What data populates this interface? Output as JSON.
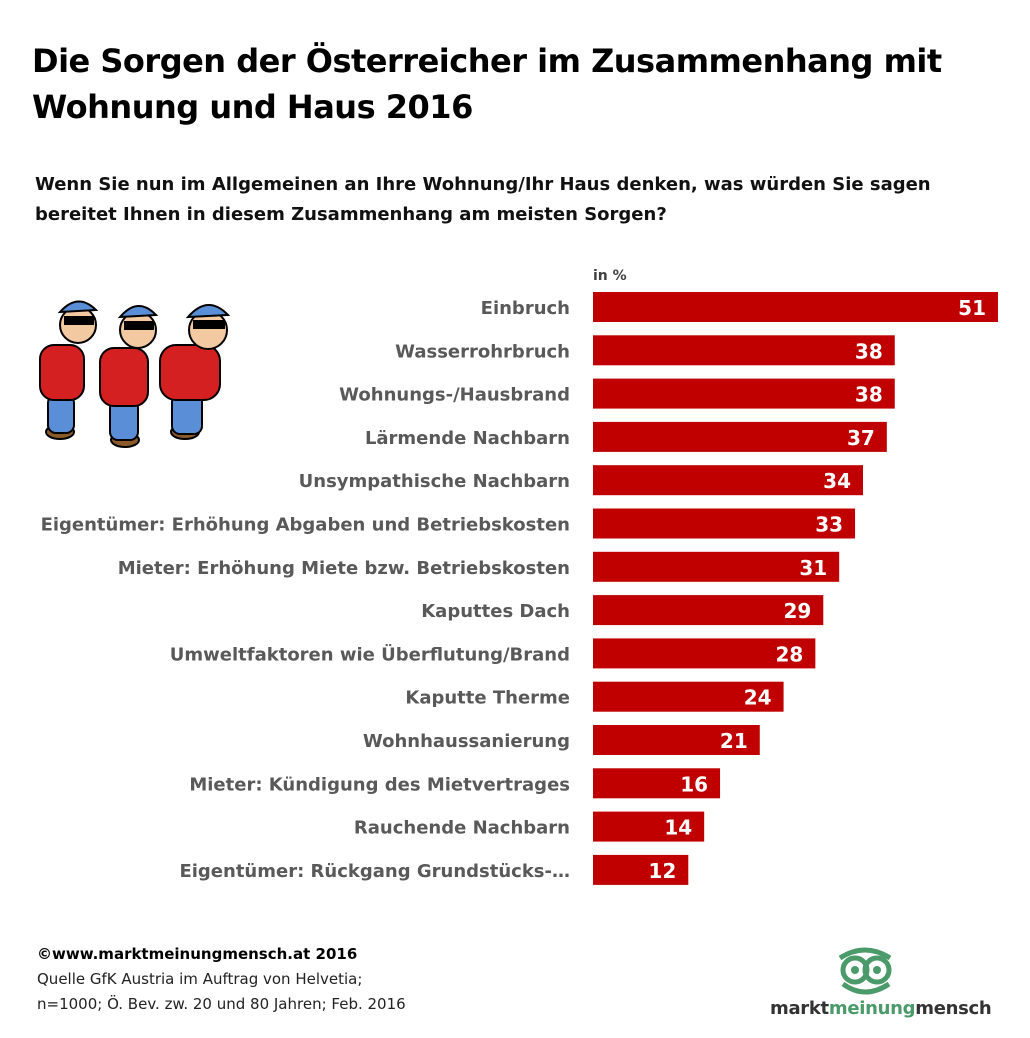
{
  "title_line1": "Die Sorgen der Österreicher im Zusammenhang mit",
  "title_line2": "Wohnung und Haus 2016",
  "question_line1": "Wenn Sie nun im Allgemeinen an Ihre Wohnung/Ihr Haus denken, was würden Sie sagen",
  "question_line2": "bereitet Ihnen in diesem Zusammenhang  am meisten Sorgen?",
  "chart_data": {
    "type": "bar",
    "orientation": "horizontal",
    "unit_label": "in %",
    "categories": [
      "Einbruch",
      "Wasserrohrbruch",
      "Wohnungs-/Hausbrand",
      "Lärmende Nachbarn",
      "Unsympathische Nachbarn",
      "Eigentümer: Erhöhung Abgaben und Betriebskosten",
      "Mieter: Erhöhung Miete bzw. Betriebskosten",
      "Kaputtes Dach",
      "Umweltfaktoren wie Überflutung/Brand",
      "Kaputte Therme",
      "Wohnhaussanierung",
      "Mieter: Kündigung des Mietvertrages",
      "Rauchende Nachbarn",
      "Eigentümer: Rückgang Grundstücks-…"
    ],
    "values": [
      51,
      38,
      38,
      37,
      34,
      33,
      31,
      29,
      28,
      24,
      21,
      16,
      14,
      12
    ],
    "bar_color": "#c00000",
    "label_color": "#595959",
    "xlim": [
      0,
      51
    ],
    "grid": false,
    "data_labels": true
  },
  "footer": {
    "copyright": "©www.marktmeinungmensch.at 2016",
    "source_line1": "Quelle GfK Austria im Auftrag von Helvetia;",
    "source_line2": "n=1000; Ö. Bev. zw. 20 und 80 Jahren; Feb. 2016"
  },
  "logo": {
    "part1": "markt",
    "part2": "meinung",
    "part3": "mensch",
    "icon": "owl-icon",
    "color": "#4a9a6a"
  },
  "illustration": {
    "icon": "cartoon-characters-icon"
  }
}
